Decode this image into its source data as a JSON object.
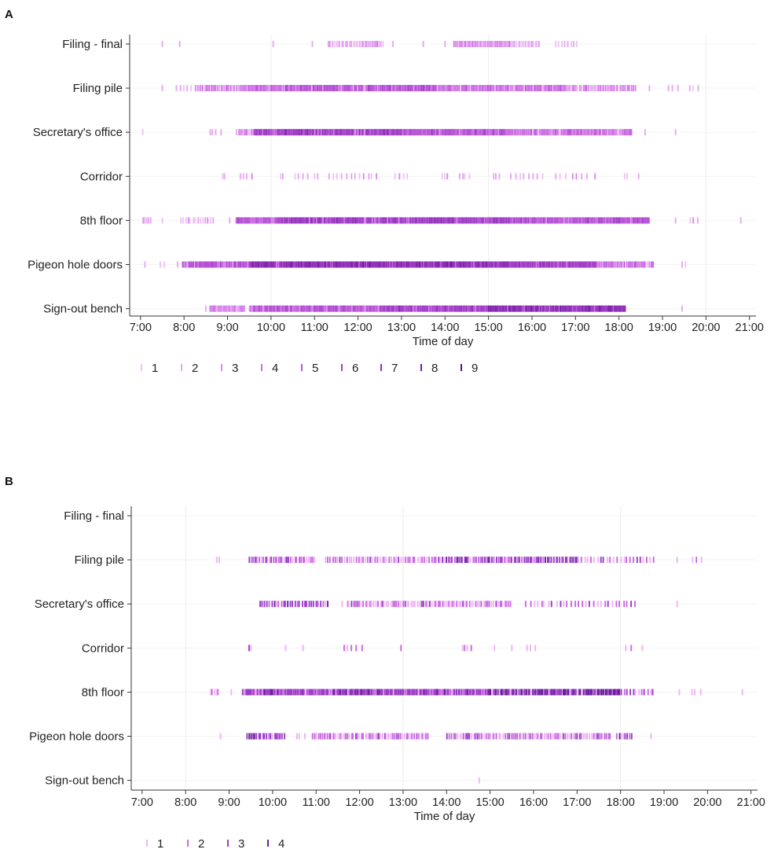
{
  "chart_data": [
    {
      "panel": "A",
      "type": "scatter",
      "title": "",
      "xlabel": "Time of day",
      "ylabel": "",
      "xlim": [
        6.75,
        21.15
      ],
      "gridlines_at": [
        10,
        15,
        20
      ],
      "x_ticks": [
        {
          "value": 7,
          "label": "7:00"
        },
        {
          "value": 8,
          "label": "8:00"
        },
        {
          "value": 9,
          "label": "9:00"
        },
        {
          "value": 10,
          "label": "10:00"
        },
        {
          "value": 11,
          "label": "11:00"
        },
        {
          "value": 12,
          "label": "12:00"
        },
        {
          "value": 13,
          "label": "13:00"
        },
        {
          "value": 14,
          "label": "14:00"
        },
        {
          "value": 15,
          "label": "15:00"
        },
        {
          "value": 16,
          "label": "16:00"
        },
        {
          "value": 17,
          "label": "17:00"
        },
        {
          "value": 18,
          "label": "18:00"
        },
        {
          "value": 19,
          "label": "19:00"
        },
        {
          "value": 20,
          "label": "20:00"
        },
        {
          "value": 21,
          "label": "21:00"
        }
      ],
      "categories": [
        "Filing - final",
        "Filing pile",
        "Secretary's office",
        "Corridor",
        "8th floor",
        "Pigeon hole doors",
        "Sign-out bench"
      ],
      "legend": {
        "title": "",
        "placement": "bottom-left",
        "levels": [
          "1",
          "2",
          "3",
          "4",
          "5",
          "6",
          "7",
          "8",
          "9"
        ]
      },
      "series": [
        {
          "name": "Filing - final",
          "segments": [
            {
              "from": 7.5,
              "to": 7.55,
              "count": 2
            },
            {
              "from": 7.9,
              "to": 7.95,
              "count": 2
            },
            {
              "from": 10.05,
              "to": 10.2,
              "count": 2
            },
            {
              "from": 10.95,
              "to": 11.1,
              "count": 2
            },
            {
              "from": 11.3,
              "to": 12.1,
              "count": 2,
              "n": 18
            },
            {
              "from": 12.1,
              "to": 12.6,
              "count": 3,
              "n": 12
            },
            {
              "from": 12.8,
              "to": 12.85,
              "count": 2
            },
            {
              "from": 13.5,
              "to": 13.55,
              "count": 2
            },
            {
              "from": 14.0,
              "to": 14.2,
              "count": 2
            },
            {
              "from": 14.2,
              "to": 15.5,
              "count": 3,
              "n": 40
            },
            {
              "from": 15.5,
              "to": 16.2,
              "count": 2,
              "n": 16
            },
            {
              "from": 16.5,
              "to": 17.1,
              "count": 2,
              "n": 8
            }
          ]
        },
        {
          "name": "Filing pile",
          "segments": [
            {
              "from": 7.5,
              "to": 7.6,
              "count": 2
            },
            {
              "from": 7.8,
              "to": 8.3,
              "count": 2,
              "n": 6
            },
            {
              "from": 8.3,
              "to": 9.3,
              "count": 3,
              "n": 26
            },
            {
              "from": 9.3,
              "to": 10.3,
              "count": 4,
              "n": 40
            },
            {
              "from": 10.3,
              "to": 13.8,
              "count": 5,
              "n": 150
            },
            {
              "from": 13.8,
              "to": 16.8,
              "count": 4,
              "n": 120
            },
            {
              "from": 16.8,
              "to": 18.4,
              "count": 3,
              "n": 40
            },
            {
              "from": 18.7,
              "to": 18.75,
              "count": 2
            },
            {
              "from": 19.1,
              "to": 19.4,
              "count": 2,
              "n": 3
            },
            {
              "from": 19.6,
              "to": 19.9,
              "count": 2,
              "n": 3
            }
          ]
        },
        {
          "name": "Secretary's office",
          "segments": [
            {
              "from": 7.05,
              "to": 7.1,
              "count": 1
            },
            {
              "from": 8.6,
              "to": 8.75,
              "count": 2,
              "n": 3
            },
            {
              "from": 8.85,
              "to": 8.9,
              "count": 2
            },
            {
              "from": 9.2,
              "to": 9.6,
              "count": 3,
              "n": 10
            },
            {
              "from": 9.6,
              "to": 13.0,
              "count": 6,
              "n": 170
            },
            {
              "from": 13.0,
              "to": 15.5,
              "count": 5,
              "n": 120
            },
            {
              "from": 15.5,
              "to": 18.3,
              "count": 4,
              "n": 110
            },
            {
              "from": 18.6,
              "to": 18.65,
              "count": 2
            },
            {
              "from": 19.3,
              "to": 19.35,
              "count": 2
            }
          ]
        },
        {
          "name": "Corridor",
          "segments": [
            {
              "from": 8.85,
              "to": 9.0,
              "count": 2,
              "n": 2
            },
            {
              "from": 9.25,
              "to": 9.6,
              "count": 2,
              "n": 4
            },
            {
              "from": 10.2,
              "to": 10.3,
              "count": 2,
              "n": 2
            },
            {
              "from": 10.5,
              "to": 10.9,
              "count": 2,
              "n": 4
            },
            {
              "from": 11.0,
              "to": 11.1,
              "count": 2,
              "n": 2
            },
            {
              "from": 11.3,
              "to": 12.5,
              "count": 2,
              "n": 12
            },
            {
              "from": 12.8,
              "to": 13.2,
              "count": 2,
              "n": 4
            },
            {
              "from": 13.9,
              "to": 14.1,
              "count": 2,
              "n": 3
            },
            {
              "from": 14.3,
              "to": 14.6,
              "count": 2,
              "n": 4
            },
            {
              "from": 15.1,
              "to": 15.3,
              "count": 2,
              "n": 3
            },
            {
              "from": 15.5,
              "to": 16.3,
              "count": 2,
              "n": 8
            },
            {
              "from": 16.5,
              "to": 17.5,
              "count": 2,
              "n": 8
            },
            {
              "from": 18.1,
              "to": 18.25,
              "count": 2,
              "n": 2
            },
            {
              "from": 18.45,
              "to": 18.5,
              "count": 2
            }
          ]
        },
        {
          "name": "8th floor",
          "segments": [
            {
              "from": 7.05,
              "to": 7.25,
              "count": 2,
              "n": 6
            },
            {
              "from": 7.5,
              "to": 7.55,
              "count": 1
            },
            {
              "from": 7.9,
              "to": 8.7,
              "count": 2,
              "n": 14
            },
            {
              "from": 9.05,
              "to": 9.1,
              "count": 2
            },
            {
              "from": 9.2,
              "to": 10.2,
              "count": 5,
              "n": 50
            },
            {
              "from": 10.2,
              "to": 15.5,
              "count": 6,
              "n": 240
            },
            {
              "from": 15.5,
              "to": 18.7,
              "count": 5,
              "n": 140
            },
            {
              "from": 19.3,
              "to": 19.35,
              "count": 2
            },
            {
              "from": 19.6,
              "to": 19.9,
              "count": 2,
              "n": 3
            },
            {
              "from": 20.8,
              "to": 20.85,
              "count": 2
            }
          ]
        },
        {
          "name": "Pigeon hole doors",
          "segments": [
            {
              "from": 7.1,
              "to": 7.15,
              "count": 2
            },
            {
              "from": 7.45,
              "to": 7.6,
              "count": 2,
              "n": 2
            },
            {
              "from": 7.85,
              "to": 7.9,
              "count": 2
            },
            {
              "from": 7.95,
              "to": 9.5,
              "count": 5,
              "n": 80
            },
            {
              "from": 9.5,
              "to": 15.5,
              "count": 7,
              "n": 320
            },
            {
              "from": 15.5,
              "to": 17.5,
              "count": 6,
              "n": 100
            },
            {
              "from": 17.5,
              "to": 18.8,
              "count": 4,
              "n": 44
            },
            {
              "from": 19.45,
              "to": 19.55,
              "count": 2,
              "n": 2
            }
          ]
        },
        {
          "name": "Sign-out bench",
          "segments": [
            {
              "from": 8.5,
              "to": 8.55,
              "count": 2
            },
            {
              "from": 8.6,
              "to": 9.4,
              "count": 3,
              "n": 40
            },
            {
              "from": 9.5,
              "to": 12.5,
              "count": 5,
              "n": 150
            },
            {
              "from": 12.5,
              "to": 15.0,
              "count": 6,
              "n": 120
            },
            {
              "from": 15.0,
              "to": 18.15,
              "count": 7,
              "n": 150
            },
            {
              "from": 19.45,
              "to": 19.5,
              "count": 2
            }
          ]
        }
      ]
    },
    {
      "panel": "B",
      "type": "scatter",
      "title": "",
      "xlabel": "Time of day",
      "ylabel": "",
      "xlim": [
        6.75,
        21.15
      ],
      "gridlines_at": [
        8,
        13,
        18
      ],
      "x_ticks": [
        {
          "value": 7,
          "label": "7:00"
        },
        {
          "value": 8,
          "label": "8:00"
        },
        {
          "value": 9,
          "label": "9:00"
        },
        {
          "value": 10,
          "label": "10:00"
        },
        {
          "value": 11,
          "label": "11:00"
        },
        {
          "value": 12,
          "label": "12:00"
        },
        {
          "value": 13,
          "label": "13:00"
        },
        {
          "value": 14,
          "label": "14:00"
        },
        {
          "value": 15,
          "label": "15:00"
        },
        {
          "value": 16,
          "label": "16:00"
        },
        {
          "value": 17,
          "label": "17:00"
        },
        {
          "value": 18,
          "label": "18:00"
        },
        {
          "value": 19,
          "label": "19:00"
        },
        {
          "value": 20,
          "label": "20:00"
        },
        {
          "value": 21,
          "label": "21:00"
        }
      ],
      "categories": [
        "Filing - final",
        "Filing pile",
        "Secretary's office",
        "Corridor",
        "8th floor",
        "Pigeon hole doors",
        "Sign-out bench"
      ],
      "legend": {
        "title": "",
        "placement": "bottom-left",
        "levels": [
          "1",
          "2",
          "3",
          "4"
        ]
      },
      "series": [
        {
          "name": "Filing - final",
          "segments": []
        },
        {
          "name": "Filing pile",
          "segments": [
            {
              "from": 8.7,
              "to": 8.8,
              "count": 1,
              "n": 2
            },
            {
              "from": 9.45,
              "to": 11.0,
              "count": 2,
              "n": 34
            },
            {
              "from": 11.2,
              "to": 13.8,
              "count": 2,
              "n": 48
            },
            {
              "from": 13.8,
              "to": 17.0,
              "count": 3,
              "n": 70
            },
            {
              "from": 17.0,
              "to": 18.8,
              "count": 2,
              "n": 24
            },
            {
              "from": 19.3,
              "to": 19.35,
              "count": 1
            },
            {
              "from": 19.65,
              "to": 19.9,
              "count": 1,
              "n": 3
            }
          ]
        },
        {
          "name": "Secretary's office",
          "segments": [
            {
              "from": 9.7,
              "to": 11.3,
              "count": 3,
              "n": 30
            },
            {
              "from": 11.6,
              "to": 11.65,
              "count": 1
            },
            {
              "from": 11.7,
              "to": 15.5,
              "count": 2,
              "n": 80
            },
            {
              "from": 15.8,
              "to": 18.4,
              "count": 2,
              "n": 30
            },
            {
              "from": 19.3,
              "to": 19.35,
              "count": 1
            }
          ]
        },
        {
          "name": "Corridor",
          "segments": [
            {
              "from": 9.4,
              "to": 9.6,
              "count": 2,
              "n": 2
            },
            {
              "from": 10.3,
              "to": 10.35,
              "count": 1
            },
            {
              "from": 10.7,
              "to": 10.75,
              "count": 1
            },
            {
              "from": 11.6,
              "to": 12.1,
              "count": 2,
              "n": 5
            },
            {
              "from": 12.95,
              "to": 13.0,
              "count": 2
            },
            {
              "from": 14.35,
              "to": 14.6,
              "count": 2,
              "n": 4
            },
            {
              "from": 15.1,
              "to": 15.2,
              "count": 1
            },
            {
              "from": 15.5,
              "to": 15.55,
              "count": 1
            },
            {
              "from": 15.8,
              "to": 16.15,
              "count": 1,
              "n": 3
            },
            {
              "from": 18.1,
              "to": 18.3,
              "count": 1,
              "n": 2
            },
            {
              "from": 18.5,
              "to": 18.55,
              "count": 1
            }
          ]
        },
        {
          "name": "8th floor",
          "segments": [
            {
              "from": 8.55,
              "to": 8.8,
              "count": 2,
              "n": 5
            },
            {
              "from": 9.05,
              "to": 9.1,
              "count": 1
            },
            {
              "from": 9.3,
              "to": 15.0,
              "count": 3,
              "n": 200
            },
            {
              "from": 15.0,
              "to": 18.0,
              "count": 4,
              "n": 90
            },
            {
              "from": 18.0,
              "to": 18.8,
              "count": 2,
              "n": 12
            },
            {
              "from": 19.35,
              "to": 19.4,
              "count": 1
            },
            {
              "from": 19.6,
              "to": 19.9,
              "count": 1,
              "n": 3
            },
            {
              "from": 20.8,
              "to": 20.85,
              "count": 1
            }
          ]
        },
        {
          "name": "Pigeon hole doors",
          "segments": [
            {
              "from": 8.8,
              "to": 8.85,
              "count": 1
            },
            {
              "from": 9.4,
              "to": 10.3,
              "count": 3,
              "n": 20
            },
            {
              "from": 10.5,
              "to": 10.8,
              "count": 1,
              "n": 3
            },
            {
              "from": 10.9,
              "to": 13.6,
              "count": 2,
              "n": 60
            },
            {
              "from": 14.0,
              "to": 17.8,
              "count": 2,
              "n": 80
            },
            {
              "from": 17.9,
              "to": 18.3,
              "count": 3,
              "n": 8
            },
            {
              "from": 18.7,
              "to": 18.75,
              "count": 1
            }
          ]
        },
        {
          "name": "Sign-out bench",
          "segments": [
            {
              "from": 14.75,
              "to": 14.8,
              "count": 1
            }
          ]
        }
      ]
    }
  ],
  "panels": [
    {
      "label": "A",
      "xlabel": "Time of day",
      "categories": [
        "Filing - final",
        "Filing pile",
        "Secretary's office",
        "Corridor",
        "8th floor",
        "Pigeon hole doors",
        "Sign-out bench"
      ],
      "x_tick_labels": [
        "7:00",
        "8:00",
        "9:00",
        "10:00",
        "11:00",
        "12:00",
        "13:00",
        "14:00",
        "15:00",
        "16:00",
        "17:00",
        "18:00",
        "19:00",
        "20:00",
        "21:00"
      ],
      "legend_labels": [
        "1",
        "2",
        "3",
        "4",
        "5",
        "6",
        "7",
        "8",
        "9"
      ]
    },
    {
      "label": "B",
      "xlabel": "Time of day",
      "categories": [
        "Filing - final",
        "Filing pile",
        "Secretary's office",
        "Corridor",
        "8th floor",
        "Pigeon hole doors",
        "Sign-out bench"
      ],
      "x_tick_labels": [
        "7:00",
        "8:00",
        "9:00",
        "10:00",
        "11:00",
        "12:00",
        "13:00",
        "14:00",
        "15:00",
        "16:00",
        "17:00",
        "18:00",
        "19:00",
        "20:00",
        "21:00"
      ],
      "legend_labels": [
        "1",
        "2",
        "3",
        "4"
      ]
    }
  ],
  "colors": {
    "scale_9": [
      "#f0c2f6",
      "#e6a8f2",
      "#d98bec",
      "#cc70e4",
      "#b957d8",
      "#a241c8",
      "#8b30b4",
      "#741f9e",
      "#5a1180"
    ],
    "scale_4": [
      "#eeb4f3",
      "#c96ae2",
      "#9a3ec8",
      "#6a1c9a"
    ],
    "axis": "#333333",
    "grid": "#ececec"
  }
}
